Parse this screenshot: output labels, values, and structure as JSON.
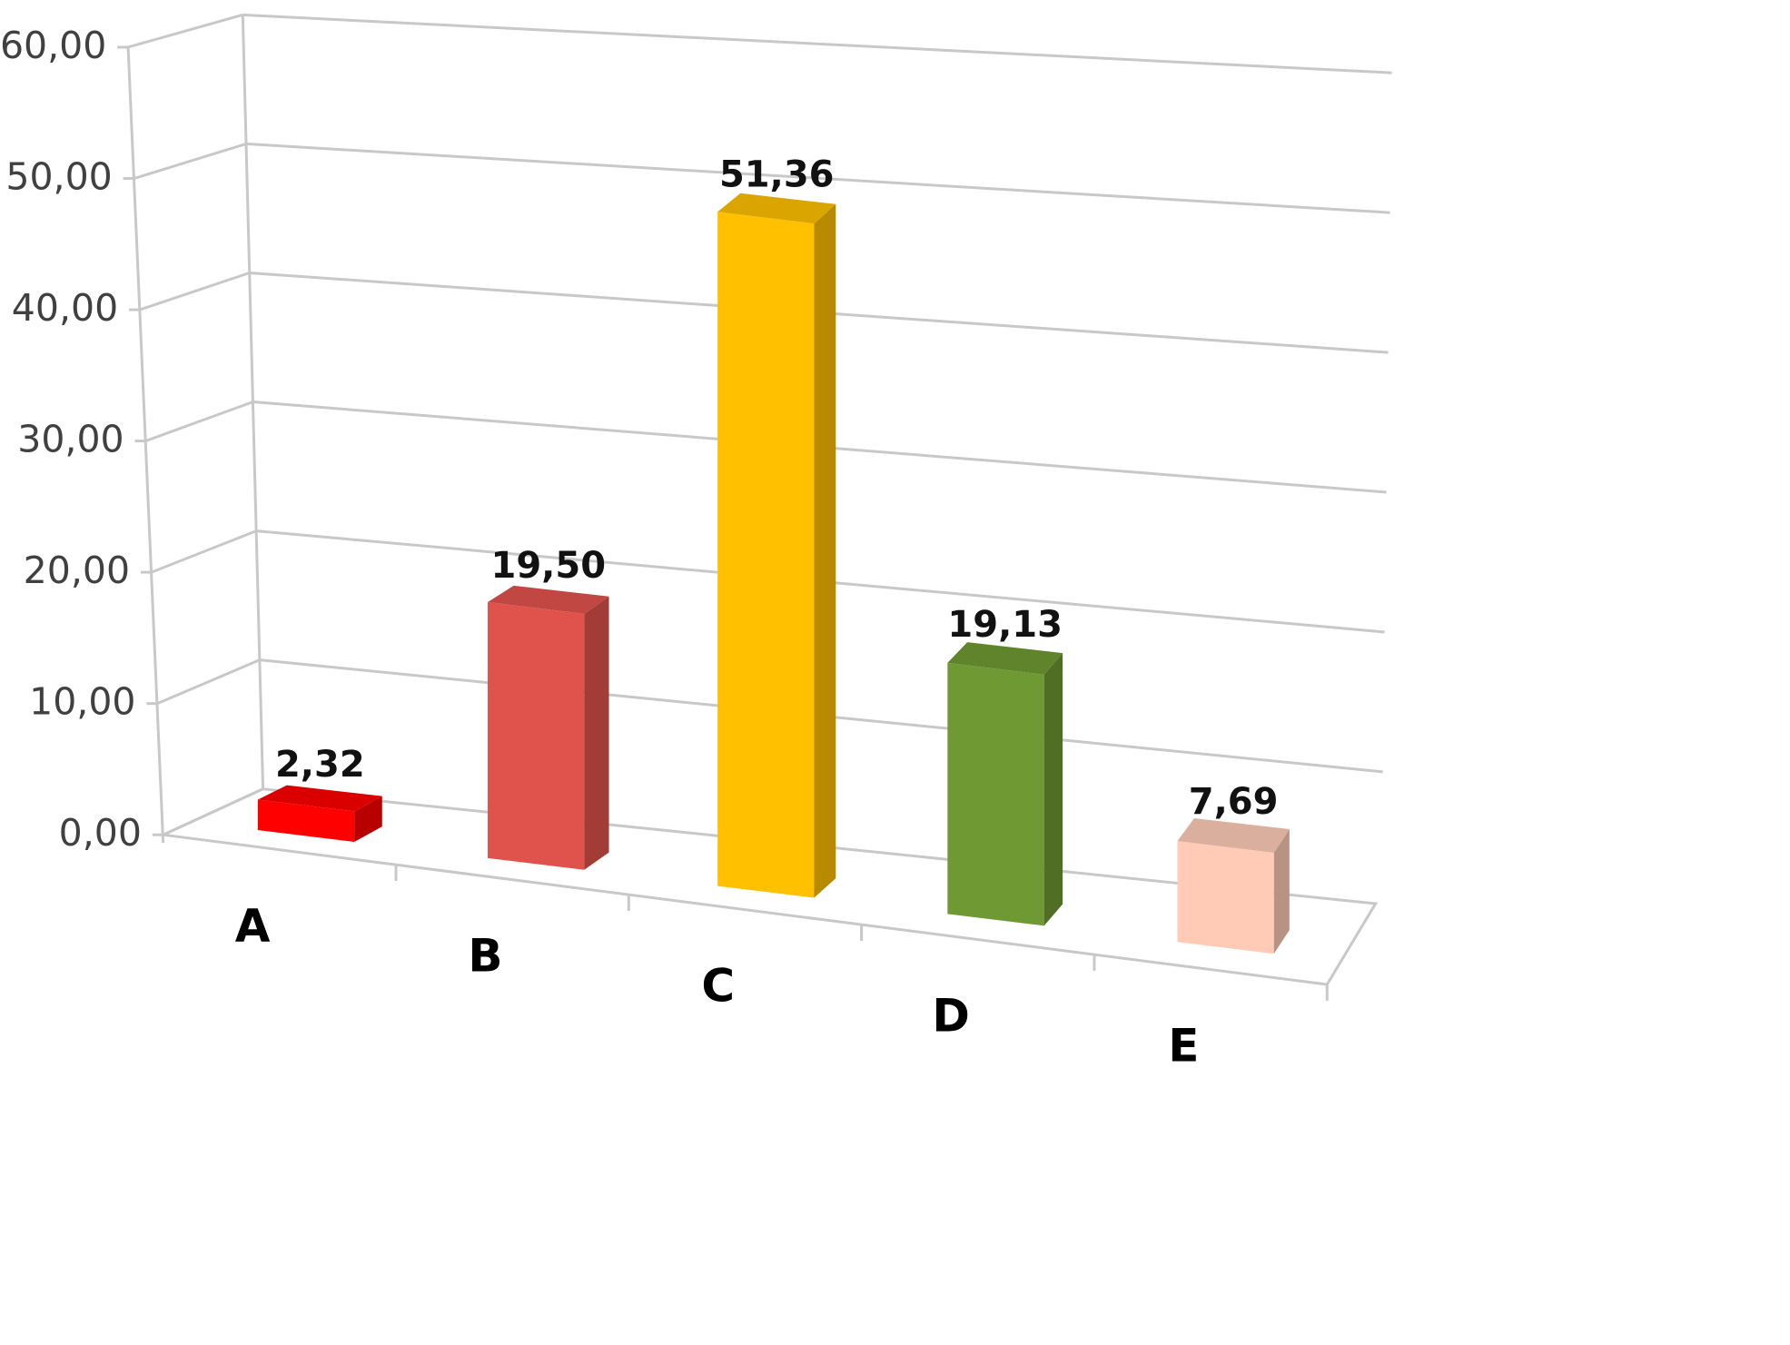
{
  "chart_data": {
    "type": "bar",
    "style": "3d-column",
    "categories": [
      "A",
      "B",
      "C",
      "D",
      "E"
    ],
    "values": [
      2.32,
      19.5,
      51.36,
      19.13,
      7.69
    ],
    "value_labels": [
      "2,32",
      "19,50",
      "51,36",
      "19,13",
      "7,69"
    ],
    "colors": [
      "#ff0000",
      "#e0534d",
      "#ffc000",
      "#6f9a33",
      "#ffcbb6"
    ],
    "title": "",
    "xlabel": "",
    "ylabel": "",
    "ylim": [
      0,
      60
    ],
    "yticks": [
      0,
      10,
      20,
      30,
      40,
      50,
      60
    ],
    "ytick_labels": [
      "0,00",
      "10,00",
      "20,00",
      "30,00",
      "40,00",
      "50,00",
      "60,00"
    ],
    "grid": true,
    "legend": "none"
  }
}
